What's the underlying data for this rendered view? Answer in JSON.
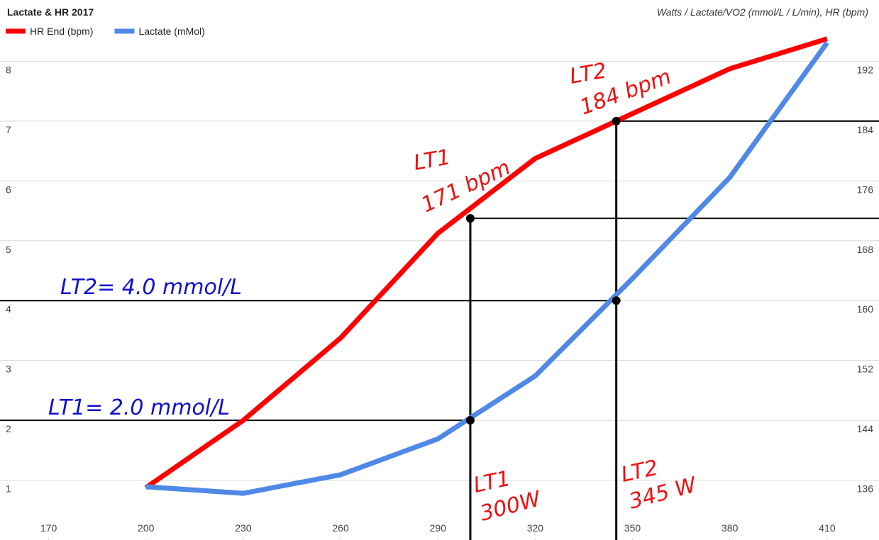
{
  "chart_data": {
    "type": "line",
    "title": "Lactate & HR 2017",
    "axis_title": "Watts / Lactate/VO2 (mmol/L / L/min), HR (bpm)",
    "x": [
      200,
      230,
      260,
      290,
      320,
      350,
      380,
      410
    ],
    "xlim": [
      155,
      426
    ],
    "xticks": [
      170,
      200,
      230,
      260,
      290,
      320,
      350,
      380,
      410
    ],
    "ylim": [
      0,
      9
    ],
    "yticks": [
      1,
      2,
      3,
      4,
      5,
      6,
      7,
      8
    ],
    "y2lim": [
      128,
      200
    ],
    "y2ticks": [
      136,
      144,
      152,
      160,
      168,
      176,
      184,
      192
    ],
    "grid": true,
    "legend": "top-left",
    "series": [
      {
        "name": "HR End (bpm)",
        "color": "#ff0000",
        "axis": "y2",
        "values": [
          135,
          144,
          155,
          169,
          179,
          185,
          191,
          195
        ]
      },
      {
        "name": "Lactate (mMol)",
        "color": "#4f88e6",
        "values": [
          0.89,
          0.78,
          1.09,
          1.69,
          2.74,
          4.37,
          6.06,
          8.31
        ]
      }
    ],
    "thresholds": [
      {
        "x": 300,
        "hr": 171,
        "lactate": 2.0
      },
      {
        "x": 345,
        "hr": 184,
        "lactate": 4.0
      }
    ],
    "annotations": [
      "LT2= 4.0 mmol/L",
      "LT1= 2.0 mmol/L",
      "LT1",
      "171 bpm",
      "LT2",
      "184 bpm",
      "LT1",
      "300W",
      "LT2",
      "345 W"
    ]
  }
}
